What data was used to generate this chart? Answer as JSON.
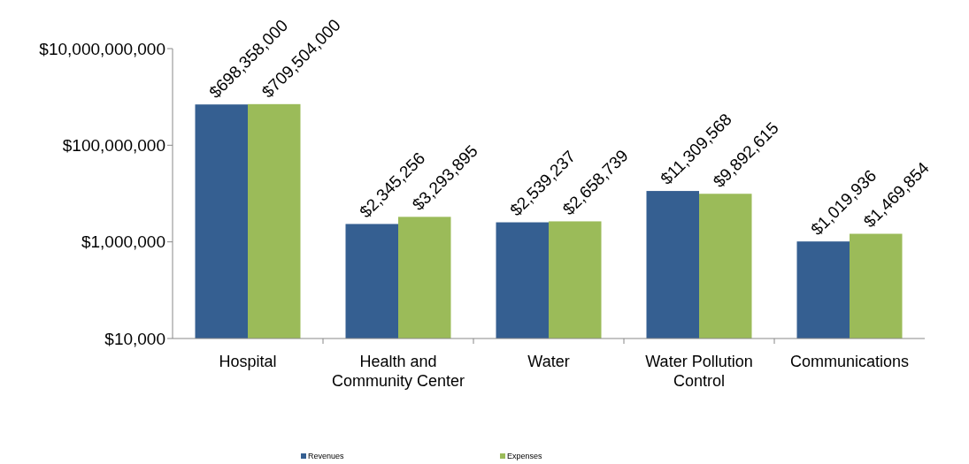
{
  "chart_data": {
    "type": "bar",
    "categories": [
      "Hospital",
      "Health and Community Center",
      "Water",
      "Water Pollution Control",
      "Communications"
    ],
    "series": [
      {
        "name": "Revenues",
        "color": "#355f91",
        "values": [
          698358000,
          2345256,
          2539237,
          11309568,
          1019936
        ]
      },
      {
        "name": "Expenses",
        "color": "#9bbb59",
        "values": [
          709504000,
          3293895,
          2658739,
          9892615,
          1469854
        ]
      }
    ],
    "log": true,
    "ylim": [
      10000,
      10000000000
    ],
    "yticks": [
      {
        "value": 10000,
        "label": "$10,000"
      },
      {
        "value": 1000000,
        "label": "$1,000,000"
      },
      {
        "value": 100000000,
        "label": "$100,000,000"
      },
      {
        "value": 10000000000,
        "label": "$10,000,000,000"
      }
    ],
    "value_labels": [
      [
        "$698,358,000",
        "$2,345,256",
        "$2,539,237",
        "$11,309,568",
        "$1,019,936"
      ],
      [
        "$709,504,000",
        "$3,293,895",
        "$2,658,739",
        "$9,892,615",
        "$1,469,854"
      ]
    ],
    "grid": false,
    "legend": "bottom"
  }
}
